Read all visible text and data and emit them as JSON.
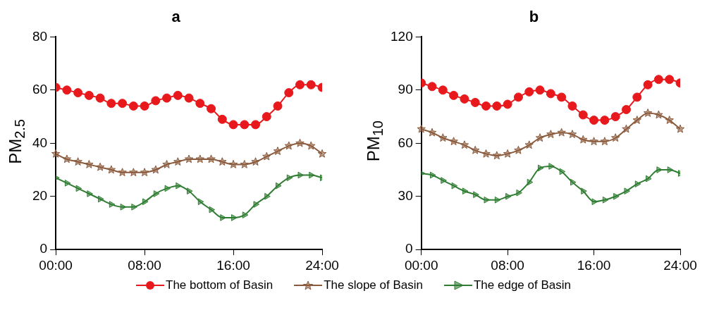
{
  "chart_data": [
    {
      "type": "line",
      "title": "a",
      "ylabel": "PM$_{2.5}$",
      "x": [
        0,
        1,
        2,
        3,
        4,
        5,
        6,
        7,
        8,
        9,
        10,
        11,
        12,
        13,
        14,
        15,
        16,
        17,
        18,
        19,
        20,
        21,
        22,
        23,
        24
      ],
      "xlim": [
        0,
        24
      ],
      "xticks": [
        {
          "value": 0,
          "label": "00:00"
        },
        {
          "value": 8,
          "label": "08:00"
        },
        {
          "value": 16,
          "label": "16:00"
        },
        {
          "value": 24,
          "label": "24:00"
        }
      ],
      "ylim": [
        0,
        80
      ],
      "yticks": [
        0,
        20,
        40,
        60,
        80
      ],
      "legend": "bottom",
      "series": [
        {
          "name": "The bottom of Basin",
          "color": "#e8191c",
          "marker": "circle",
          "values": [
            61,
            60,
            59,
            58,
            57,
            55,
            55,
            54,
            54,
            56,
            57,
            58,
            57,
            55,
            53,
            49,
            47,
            47,
            47,
            50,
            54,
            59,
            62,
            62,
            61
          ]
        },
        {
          "name": "The slope of Basin",
          "color": "#8b5a3c",
          "marker": "star",
          "values": [
            36,
            34,
            33,
            32,
            31,
            30,
            29,
            29,
            29,
            30,
            32,
            33,
            34,
            34,
            34,
            33,
            32,
            32,
            33,
            35,
            37,
            39,
            40,
            39,
            36
          ]
        },
        {
          "name": "The edge of Basin",
          "color": "#2f7d32",
          "marker": "triangle",
          "values": [
            27,
            25,
            23,
            21,
            19,
            17,
            16,
            16,
            18,
            21,
            23,
            24,
            22,
            18,
            15,
            12,
            12,
            13,
            17,
            20,
            24,
            27,
            28,
            28,
            27
          ]
        }
      ]
    },
    {
      "type": "line",
      "title": "b",
      "ylabel": "PM$_{10}$",
      "x": [
        0,
        1,
        2,
        3,
        4,
        5,
        6,
        7,
        8,
        9,
        10,
        11,
        12,
        13,
        14,
        15,
        16,
        17,
        18,
        19,
        20,
        21,
        22,
        23,
        24
      ],
      "xlim": [
        0,
        24
      ],
      "xticks": [
        {
          "value": 0,
          "label": "00:00"
        },
        {
          "value": 8,
          "label": "08:00"
        },
        {
          "value": 16,
          "label": "16:00"
        },
        {
          "value": 24,
          "label": "24:00"
        }
      ],
      "ylim": [
        0,
        120
      ],
      "yticks": [
        0,
        30,
        60,
        90,
        120
      ],
      "legend": "bottom",
      "series": [
        {
          "name": "The bottom of Basin",
          "color": "#e8191c",
          "marker": "circle",
          "values": [
            94,
            92,
            90,
            87,
            85,
            83,
            81,
            81,
            82,
            86,
            89,
            90,
            88,
            86,
            81,
            76,
            73,
            73,
            75,
            79,
            86,
            93,
            96,
            96,
            94
          ]
        },
        {
          "name": "The slope of Basin",
          "color": "#8b5a3c",
          "marker": "star",
          "values": [
            68,
            66,
            63,
            61,
            59,
            56,
            54,
            53,
            54,
            56,
            59,
            63,
            65,
            66,
            65,
            62,
            61,
            61,
            63,
            68,
            73,
            77,
            76,
            73,
            68
          ]
        },
        {
          "name": "The edge of Basin",
          "color": "#2f7d32",
          "marker": "triangle",
          "values": [
            43,
            42,
            39,
            36,
            33,
            31,
            28,
            28,
            30,
            32,
            38,
            46,
            47,
            44,
            38,
            33,
            27,
            28,
            30,
            33,
            37,
            40,
            45,
            45,
            43
          ]
        }
      ]
    }
  ]
}
